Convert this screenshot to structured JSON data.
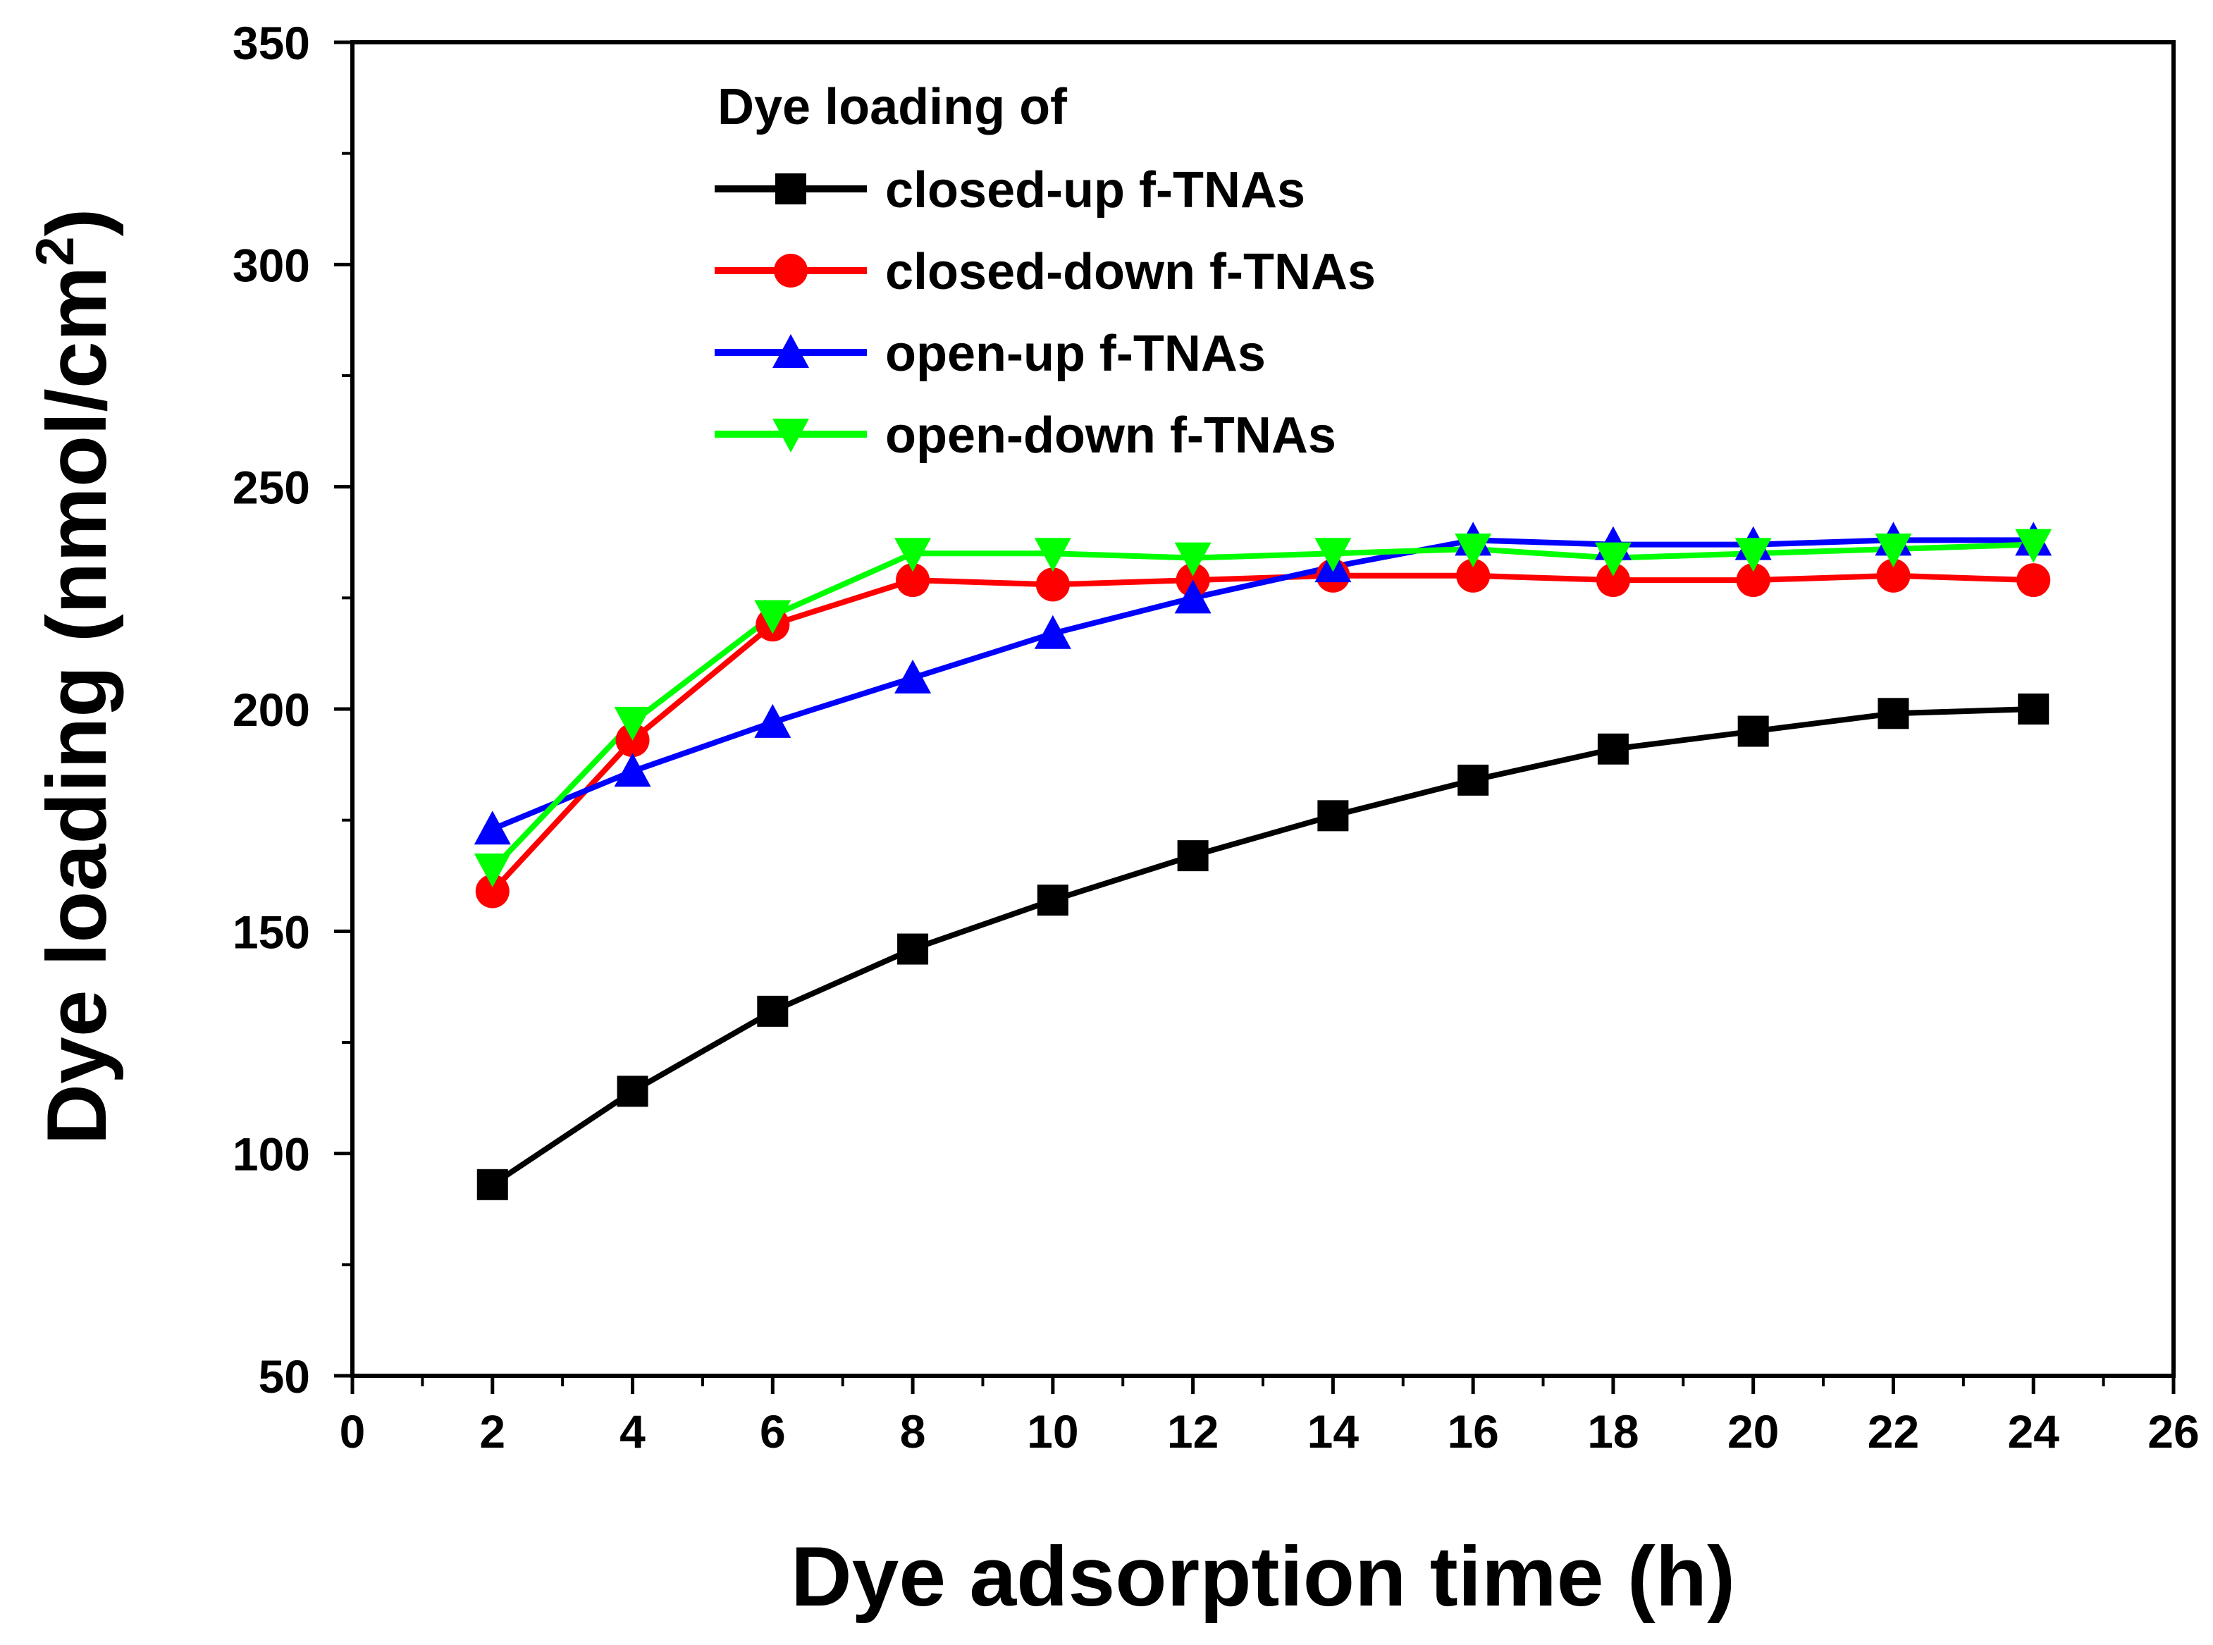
{
  "chart_data": {
    "type": "line",
    "xlabel": "Dye adsorption time (h)",
    "ylabel": "Dye loading (nmol/cm",
    "ylabel_superscript": "2",
    "ylabel_close": ")",
    "xlim": [
      0,
      26
    ],
    "ylim": [
      50,
      350
    ],
    "xticks": [
      0,
      2,
      4,
      6,
      8,
      10,
      12,
      14,
      16,
      18,
      20,
      22,
      24,
      26
    ],
    "yticks": [
      50,
      100,
      150,
      200,
      250,
      300,
      350
    ],
    "legend_title": "Dye loading of",
    "legend_position": "top-left",
    "grid": false,
    "x": [
      2,
      4,
      6,
      8,
      10,
      12,
      14,
      16,
      18,
      20,
      22,
      24
    ],
    "series": [
      {
        "name": "closed-up f-TNAs",
        "color": "#000000",
        "marker": "square",
        "values": [
          93,
          114,
          132,
          146,
          157,
          167,
          176,
          184,
          191,
          195,
          199,
          200
        ]
      },
      {
        "name": "closed-down f-TNAs",
        "color": "#ff0000",
        "marker": "circle",
        "values": [
          159,
          193,
          219,
          229,
          228,
          229,
          230,
          230,
          229,
          229,
          230,
          229
        ]
      },
      {
        "name": "open-up f-TNAs",
        "color": "#0000ff",
        "marker": "triangle-up",
        "values": [
          173,
          186,
          197,
          207,
          217,
          225,
          232,
          238,
          237,
          237,
          238,
          238
        ]
      },
      {
        "name": "open-down f-TNAs",
        "color": "#00ff00",
        "marker": "triangle-down",
        "values": [
          164,
          197,
          221,
          235,
          235,
          234,
          235,
          236,
          234,
          235,
          236,
          237
        ]
      }
    ]
  }
}
